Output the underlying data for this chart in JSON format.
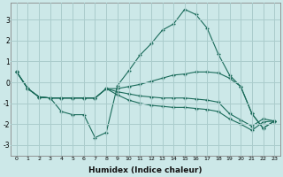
{
  "background_color": "#cce8e8",
  "grid_color": "#aacccc",
  "line_color": "#1a6b5a",
  "x_label": "Humidex (Indice chaleur)",
  "x_ticks": [
    0,
    1,
    2,
    3,
    4,
    5,
    6,
    7,
    8,
    9,
    10,
    11,
    12,
    13,
    14,
    15,
    16,
    17,
    18,
    19,
    20,
    21,
    22,
    23
  ],
  "ylim": [
    -3.5,
    3.8
  ],
  "yticks": [
    -3,
    -2,
    -1,
    0,
    1,
    2,
    3
  ],
  "lines": [
    {
      "x": [
        0,
        1,
        2,
        3,
        4,
        5,
        6,
        7,
        8,
        9,
        10,
        11,
        12,
        13,
        14,
        15,
        16,
        17,
        18,
        19,
        20,
        21,
        22,
        23
      ],
      "y": [
        0.5,
        -0.3,
        -0.7,
        -0.75,
        -1.4,
        -1.55,
        -1.55,
        -2.65,
        -2.4,
        -0.15,
        0.55,
        1.3,
        1.85,
        2.5,
        2.8,
        3.5,
        3.25,
        2.6,
        1.35,
        0.35,
        -0.2,
        -1.5,
        -2.2,
        -1.85
      ]
    },
    {
      "x": [
        0,
        1,
        2,
        3,
        4,
        5,
        6,
        7,
        8,
        9,
        10,
        11,
        12,
        13,
        14,
        15,
        16,
        17,
        18,
        19,
        20,
        21,
        22,
        23
      ],
      "y": [
        0.5,
        -0.3,
        -0.7,
        -0.75,
        -0.75,
        -0.75,
        -0.75,
        -0.75,
        -0.3,
        -0.3,
        -0.2,
        -0.1,
        0.05,
        0.2,
        0.35,
        0.4,
        0.5,
        0.5,
        0.45,
        0.2,
        -0.2,
        -1.5,
        -2.2,
        -1.85
      ]
    },
    {
      "x": [
        0,
        1,
        2,
        3,
        4,
        5,
        6,
        7,
        8,
        9,
        10,
        11,
        12,
        13,
        14,
        15,
        16,
        17,
        18,
        19,
        20,
        21,
        22,
        23
      ],
      "y": [
        0.5,
        -0.3,
        -0.7,
        -0.75,
        -0.75,
        -0.75,
        -0.75,
        -0.75,
        -0.3,
        -0.45,
        -0.55,
        -0.65,
        -0.7,
        -0.75,
        -0.75,
        -0.75,
        -0.8,
        -0.85,
        -0.95,
        -1.5,
        -1.8,
        -2.1,
        -1.75,
        -1.85
      ]
    },
    {
      "x": [
        0,
        1,
        2,
        3,
        4,
        5,
        6,
        7,
        8,
        9,
        10,
        11,
        12,
        13,
        14,
        15,
        16,
        17,
        18,
        19,
        20,
        21,
        22,
        23
      ],
      "y": [
        0.5,
        -0.3,
        -0.7,
        -0.75,
        -0.75,
        -0.75,
        -0.75,
        -0.75,
        -0.3,
        -0.6,
        -0.85,
        -1.0,
        -1.1,
        -1.15,
        -1.2,
        -1.2,
        -1.25,
        -1.3,
        -1.4,
        -1.75,
        -2.0,
        -2.3,
        -1.9,
        -1.85
      ]
    }
  ]
}
